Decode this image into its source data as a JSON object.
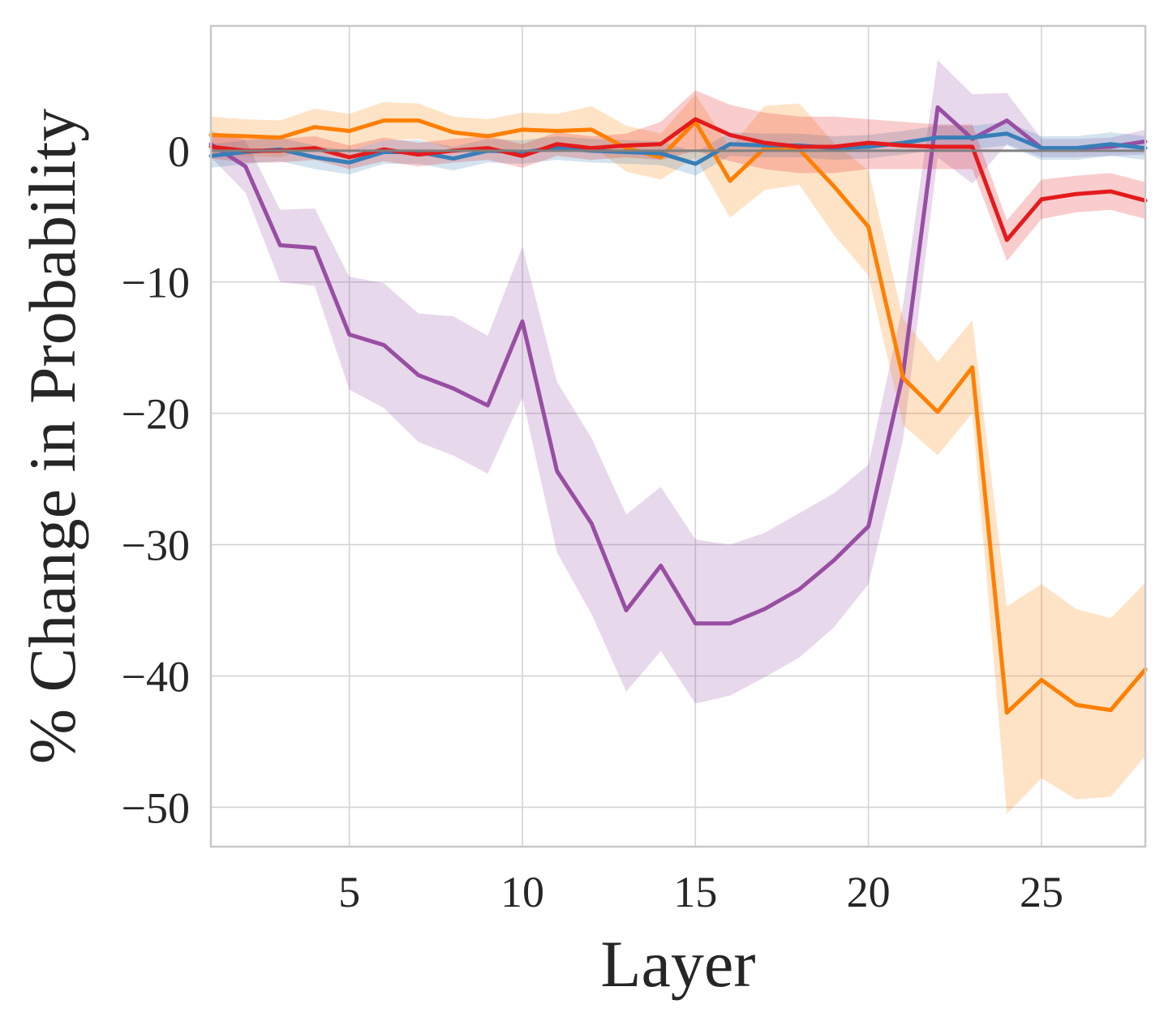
{
  "chart_data": {
    "type": "line",
    "title": "",
    "xlabel": "Layer",
    "ylabel": "% Change in Probability",
    "xlim": [
      1,
      28
    ],
    "ylim": [
      -53,
      9.5
    ],
    "xticks": [
      5,
      10,
      15,
      20,
      25
    ],
    "yticks": [
      0,
      -10,
      -20,
      -30,
      -40,
      -50
    ],
    "ytick_labels": [
      "0",
      "−10",
      "−20",
      "−30",
      "−40",
      "−50"
    ],
    "grid": true,
    "reference_line": 0,
    "x": [
      1,
      2,
      3,
      4,
      5,
      6,
      7,
      8,
      9,
      10,
      11,
      12,
      13,
      14,
      15,
      16,
      17,
      18,
      19,
      20,
      21,
      22,
      23,
      24,
      25,
      26,
      27,
      28
    ],
    "series": [
      {
        "name": "purple",
        "color": "#984ea3",
        "values": [
          0.5,
          -1.2,
          -7.2,
          -7.4,
          -14,
          -14.8,
          -17.1,
          -18.1,
          -19.4,
          -13,
          -24.4,
          -28.4,
          -35,
          -31.6,
          -36,
          -36,
          -34.9,
          -33.4,
          -31.2,
          -28.6,
          -17,
          3.3,
          0.9,
          2.3,
          0.2,
          0.2,
          0.3,
          0.7
        ],
        "lower": [
          -0.5,
          -3.2,
          -10,
          -10.3,
          -18.2,
          -19.6,
          -22.2,
          -23.2,
          -24.6,
          -18.8,
          -30.6,
          -35.3,
          -41.2,
          -38.1,
          -42.1,
          -41.5,
          -40.1,
          -38.6,
          -36.3,
          -33,
          -22,
          -0.5,
          -2.5,
          0.5,
          -0.5,
          -0.5,
          -0.4,
          -0.3
        ],
        "upper": [
          1.5,
          0.8,
          -4.5,
          -4.4,
          -9.6,
          -10.1,
          -12.4,
          -12.6,
          -14.1,
          -7.3,
          -17.6,
          -21.9,
          -27.7,
          -25.6,
          -29.6,
          -30,
          -29.1,
          -27.6,
          -26.1,
          -23.9,
          -11.7,
          6.9,
          4.3,
          4.4,
          0.9,
          0.9,
          1,
          1.6
        ]
      },
      {
        "name": "orange",
        "color": "#ff7f00",
        "values": [
          1.2,
          1.1,
          1,
          1.8,
          1.5,
          2.3,
          2.3,
          1.4,
          1.1,
          1.6,
          1.5,
          1.6,
          0.2,
          -0.5,
          2.2,
          -2.3,
          0.2,
          0.1,
          -2.7,
          -5.8,
          -17.3,
          -19.9,
          -16.5,
          -42.8,
          -40.3,
          -42.2,
          -42.6,
          -39.5
        ],
        "lower": [
          -0.3,
          -0.4,
          -0.5,
          0.2,
          0,
          0.8,
          0.9,
          0.1,
          -0.2,
          0.2,
          0.2,
          0.4,
          -1.6,
          -2.2,
          -0.5,
          -5.1,
          -3,
          -2.6,
          -6.4,
          -9.5,
          -20.9,
          -23.2,
          -20,
          -50.5,
          -47.8,
          -49.4,
          -49.2,
          -46.1
        ],
        "upper": [
          2.6,
          2.4,
          2.3,
          3.2,
          2.8,
          3.7,
          3.6,
          2.6,
          2.4,
          2.9,
          2.8,
          3.4,
          1.9,
          1.3,
          4.3,
          0.2,
          3.4,
          3.6,
          0.6,
          -1.5,
          -12.8,
          -16.1,
          -12.9,
          -34.7,
          -33,
          -34.9,
          -35.6,
          -32.9
        ]
      },
      {
        "name": "blue",
        "color": "#377eb8",
        "values": [
          -0.4,
          -0.1,
          0.1,
          -0.5,
          -0.9,
          -0.1,
          -0.1,
          -0.6,
          0,
          -0.1,
          0.2,
          0,
          -0.1,
          -0.2,
          -1,
          0.5,
          0.4,
          0.4,
          0.2,
          0.3,
          0.6,
          1,
          1,
          1.3,
          0.2,
          0.2,
          0.5,
          0.2
        ],
        "lower": [
          -1.3,
          -1,
          -0.8,
          -1.4,
          -1.8,
          -1,
          -1,
          -1.5,
          -0.9,
          -1,
          -0.7,
          -0.9,
          -1,
          -1.1,
          -1.9,
          -0.4,
          -0.5,
          -0.5,
          -0.7,
          -0.6,
          -0.3,
          0.1,
          0.1,
          0.4,
          -0.7,
          -0.7,
          -0.4,
          -0.7
        ],
        "upper": [
          0.5,
          0.8,
          1,
          0.4,
          0,
          0.8,
          0.8,
          0.3,
          0.9,
          0.8,
          1.1,
          0.9,
          0.8,
          0.7,
          -0.1,
          1.4,
          1.3,
          1.3,
          1.1,
          1.2,
          1.5,
          1.9,
          1.9,
          2.2,
          1.1,
          1.1,
          1.4,
          1.1
        ]
      },
      {
        "name": "red",
        "color": "#e41a1c",
        "values": [
          0.3,
          0,
          0,
          0.2,
          -0.5,
          0.1,
          -0.3,
          0,
          0.2,
          -0.4,
          0.5,
          0.2,
          0.4,
          0.5,
          2.4,
          1.2,
          0.6,
          0.3,
          0.3,
          0.6,
          0.4,
          0.3,
          0.3,
          -6.8,
          -3.7,
          -3.3,
          -3.1,
          -3.8
        ],
        "lower": [
          -0.6,
          -0.9,
          -0.9,
          -0.7,
          -1.4,
          -0.8,
          -1.2,
          -0.9,
          -0.7,
          -1.3,
          -0.4,
          -0.7,
          -0.5,
          -0.7,
          0,
          -0.8,
          -1.4,
          -1.7,
          -1.7,
          -1.4,
          -1.4,
          -1.4,
          -1.4,
          -8.4,
          -5.2,
          -4.7,
          -4.5,
          -5.2
        ],
        "upper": [
          1.2,
          0.9,
          0.9,
          1.1,
          0.4,
          1,
          0.6,
          0.9,
          1.1,
          0.5,
          1.4,
          1.1,
          1.3,
          2.2,
          4.6,
          3.5,
          2.9,
          2.6,
          2.6,
          2.4,
          2.2,
          2,
          2,
          -5.3,
          -2.2,
          -1.9,
          -1.7,
          -2.4
        ]
      }
    ]
  }
}
